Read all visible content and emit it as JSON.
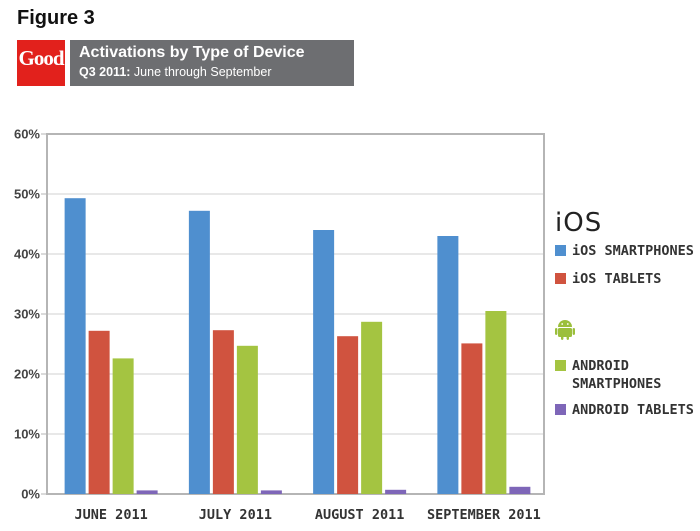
{
  "figure_label": "Figure 3",
  "logo": {
    "text": "Good",
    "color": "#e2211c"
  },
  "banner": {
    "title": "Activations by Type of Device",
    "subtitle_bold": "Q3 2011:",
    "subtitle_rest": " June through September"
  },
  "legend_groups": {
    "ios_logo": "iOS",
    "android_icon": "android-robot-icon"
  },
  "chart_data": {
    "type": "bar",
    "title": "Activations by Type of Device",
    "xlabel": "",
    "ylabel": "",
    "ylim": [
      0,
      60
    ],
    "yticks": [
      "0%",
      "10%",
      "20%",
      "30%",
      "40%",
      "50%",
      "60%"
    ],
    "grid": true,
    "legend_position": "right",
    "categories": [
      "JUNE 2011",
      "JULY 2011",
      "AUGUST 2011",
      "SEPTEMBER 2011"
    ],
    "series": [
      {
        "name": "iOS SMARTPHONES",
        "color": "#4f8fcf",
        "values": [
          49.3,
          47.2,
          44.0,
          43.0
        ]
      },
      {
        "name": "iOS TABLETS",
        "color": "#d0533f",
        "values": [
          27.2,
          27.3,
          26.3,
          25.1
        ]
      },
      {
        "name": "ANDROID SMARTPHONES",
        "color": "#a4c441",
        "values": [
          22.6,
          24.7,
          28.7,
          30.5
        ]
      },
      {
        "name": "ANDROID TABLETS",
        "color": "#7e66b8",
        "values": [
          0.6,
          0.6,
          0.7,
          1.2
        ]
      }
    ]
  }
}
